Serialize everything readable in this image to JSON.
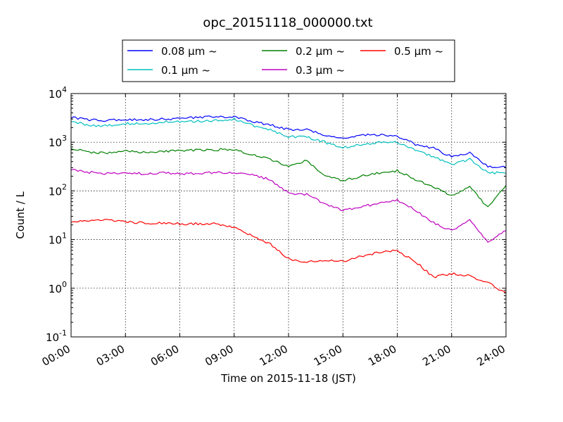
{
  "chart_data": {
    "type": "line",
    "title": "opc_20151118_000000.txt",
    "xlabel": "Time on 2015-11-18 (JST)",
    "ylabel": "Count / L",
    "yscale": "log",
    "xlim_hours": [
      0,
      24
    ],
    "ylim": [
      0.1,
      10000
    ],
    "grid": true,
    "legend_position": "top-center",
    "x_ticks": [
      "00:00",
      "03:00",
      "06:00",
      "09:00",
      "12:00",
      "15:00",
      "18:00",
      "21:00",
      "24:00"
    ],
    "y_ticks": [
      {
        "value": 0.1,
        "base": "10",
        "exp": "-1"
      },
      {
        "value": 1,
        "base": "10",
        "exp": "0"
      },
      {
        "value": 10,
        "base": "10",
        "exp": "1"
      },
      {
        "value": 100,
        "base": "10",
        "exp": "2"
      },
      {
        "value": 1000,
        "base": "10",
        "exp": "3"
      },
      {
        "value": 10000,
        "base": "10",
        "exp": "4"
      }
    ],
    "x": [
      0,
      1,
      2,
      3,
      4,
      5,
      6,
      7,
      8,
      9,
      10,
      11,
      12,
      13,
      14,
      15,
      16,
      17,
      18,
      19,
      20,
      21,
      22,
      23,
      24
    ],
    "series": [
      {
        "name": "0.08 μm ~",
        "color": "#0000ff",
        "values": [
          3200,
          2900,
          2800,
          2900,
          2900,
          3000,
          3000,
          3300,
          3300,
          3400,
          2600,
          2300,
          1800,
          1800,
          1400,
          1200,
          1400,
          1400,
          1350,
          900,
          750,
          500,
          600,
          320,
          300
        ]
      },
      {
        "name": "0.1 μm ~",
        "color": "#00bfbf",
        "values": [
          2700,
          2200,
          2200,
          2400,
          2400,
          2600,
          2600,
          2700,
          2800,
          3000,
          2200,
          1800,
          1300,
          1300,
          1000,
          780,
          900,
          1000,
          1000,
          700,
          500,
          350,
          450,
          240,
          230
        ]
      },
      {
        "name": "0.2 μm ~",
        "color": "#008000",
        "values": [
          750,
          620,
          600,
          650,
          620,
          660,
          650,
          700,
          700,
          720,
          550,
          450,
          320,
          420,
          200,
          160,
          200,
          230,
          260,
          170,
          120,
          80,
          120,
          45,
          130
        ]
      },
      {
        "name": "0.3 μm ~",
        "color": "#bf00bf",
        "values": [
          270,
          240,
          225,
          230,
          225,
          235,
          220,
          230,
          240,
          240,
          210,
          170,
          90,
          85,
          55,
          40,
          48,
          55,
          65,
          40,
          22,
          15,
          25,
          9,
          15
        ]
      },
      {
        "name": "0.5 μm ~",
        "color": "#ff0000",
        "values": [
          23,
          24,
          25,
          23,
          22,
          22,
          21,
          21,
          21,
          18,
          12,
          8,
          4,
          3.5,
          3.8,
          3.5,
          4.5,
          5.5,
          6,
          3.5,
          1.7,
          2,
          1.8,
          1.3,
          0.8
        ]
      }
    ]
  }
}
